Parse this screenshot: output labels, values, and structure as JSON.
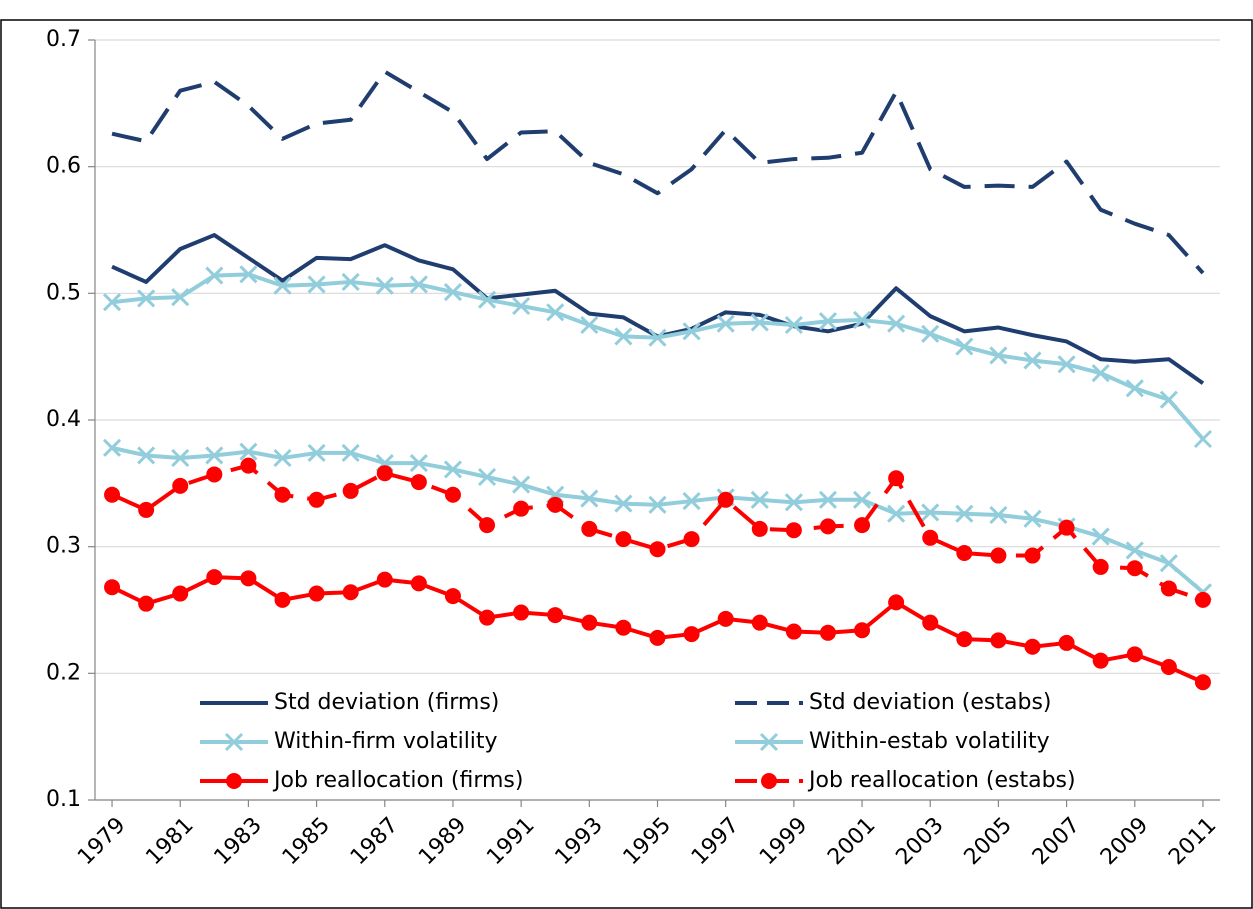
{
  "chart_data": {
    "type": "line",
    "x": [
      1979,
      1980,
      1981,
      1982,
      1983,
      1984,
      1985,
      1986,
      1987,
      1988,
      1989,
      1990,
      1991,
      1992,
      1993,
      1994,
      1995,
      1996,
      1997,
      1998,
      1999,
      2000,
      2001,
      2002,
      2003,
      2004,
      2005,
      2006,
      2007,
      2008,
      2009,
      2010,
      2011
    ],
    "xlim": [
      1978.5,
      2011.5
    ],
    "xticks": [
      1979,
      1981,
      1983,
      1985,
      1987,
      1989,
      1991,
      1993,
      1995,
      1997,
      1999,
      2001,
      2003,
      2005,
      2007,
      2009,
      2011
    ],
    "ylim": [
      0.1,
      0.7
    ],
    "yticks": [
      0.1,
      0.2,
      0.3,
      0.4,
      0.5,
      0.6,
      0.7
    ],
    "grid": true,
    "series": [
      {
        "name": "Std deviation (firms)",
        "color": "#1f3d6e",
        "dash": false,
        "marker": "none",
        "values": [
          0.521,
          0.509,
          0.535,
          0.546,
          0.528,
          0.51,
          0.528,
          0.527,
          0.538,
          0.526,
          0.519,
          0.496,
          0.499,
          0.502,
          0.484,
          0.481,
          0.466,
          0.472,
          0.485,
          0.483,
          0.474,
          0.47,
          0.476,
          0.504,
          0.482,
          0.47,
          0.473,
          0.467,
          0.462,
          0.448,
          0.446,
          0.448,
          0.429
        ]
      },
      {
        "name": "Std deviation (estabs)",
        "color": "#1f3d6e",
        "dash": true,
        "marker": "none",
        "values": [
          0.626,
          0.62,
          0.66,
          0.667,
          0.648,
          0.622,
          0.634,
          0.637,
          0.675,
          0.659,
          0.643,
          0.606,
          0.627,
          0.628,
          0.603,
          0.594,
          0.579,
          0.598,
          0.629,
          0.603,
          0.606,
          0.607,
          0.611,
          0.659,
          0.598,
          0.584,
          0.585,
          0.584,
          0.604,
          0.566,
          0.555,
          0.546,
          0.516
        ]
      },
      {
        "name": "Within-firm volatility",
        "color": "#92cddc",
        "dash": false,
        "marker": "x",
        "values": [
          0.493,
          0.496,
          0.497,
          0.514,
          0.515,
          0.506,
          0.507,
          0.509,
          0.506,
          0.507,
          0.501,
          0.495,
          0.49,
          0.485,
          0.475,
          0.466,
          0.465,
          0.47,
          0.476,
          0.477,
          0.475,
          0.478,
          0.479,
          0.476,
          0.468,
          0.458,
          0.451,
          0.447,
          0.444,
          0.437,
          0.425,
          0.416,
          0.385
        ]
      },
      {
        "name": "Within-estab volatility",
        "color": "#92cddc",
        "dash": false,
        "marker": "x",
        "values": [
          0.378,
          0.372,
          0.37,
          0.372,
          0.375,
          0.37,
          0.374,
          0.374,
          0.366,
          0.366,
          0.361,
          0.355,
          0.349,
          0.341,
          0.338,
          0.334,
          0.333,
          0.336,
          0.339,
          0.337,
          0.335,
          0.337,
          0.337,
          0.326,
          0.327,
          0.326,
          0.325,
          0.322,
          0.316,
          0.308,
          0.297,
          0.287,
          0.264
        ]
      },
      {
        "name": "Job reallocation (firms)",
        "color": "#ff0000",
        "dash": false,
        "marker": "circle",
        "values": [
          0.268,
          0.255,
          0.263,
          0.276,
          0.275,
          0.258,
          0.263,
          0.264,
          0.274,
          0.271,
          0.261,
          0.244,
          0.248,
          0.246,
          0.24,
          0.236,
          0.228,
          0.231,
          0.243,
          0.24,
          0.233,
          0.232,
          0.234,
          0.256,
          0.24,
          0.227,
          0.226,
          0.221,
          0.224,
          0.21,
          0.215,
          0.205,
          0.193
        ]
      },
      {
        "name": "Job reallocation (estabs)",
        "color": "#ff0000",
        "dash": true,
        "marker": "circle",
        "values": [
          0.341,
          0.329,
          0.348,
          0.357,
          0.364,
          0.341,
          0.337,
          0.344,
          0.358,
          0.351,
          0.341,
          0.317,
          0.33,
          0.333,
          0.314,
          0.306,
          0.298,
          0.306,
          0.337,
          0.314,
          0.313,
          0.316,
          0.317,
          0.354,
          0.307,
          0.295,
          0.293,
          0.293,
          0.315,
          0.284,
          0.283,
          0.267,
          0.258
        ]
      }
    ]
  }
}
